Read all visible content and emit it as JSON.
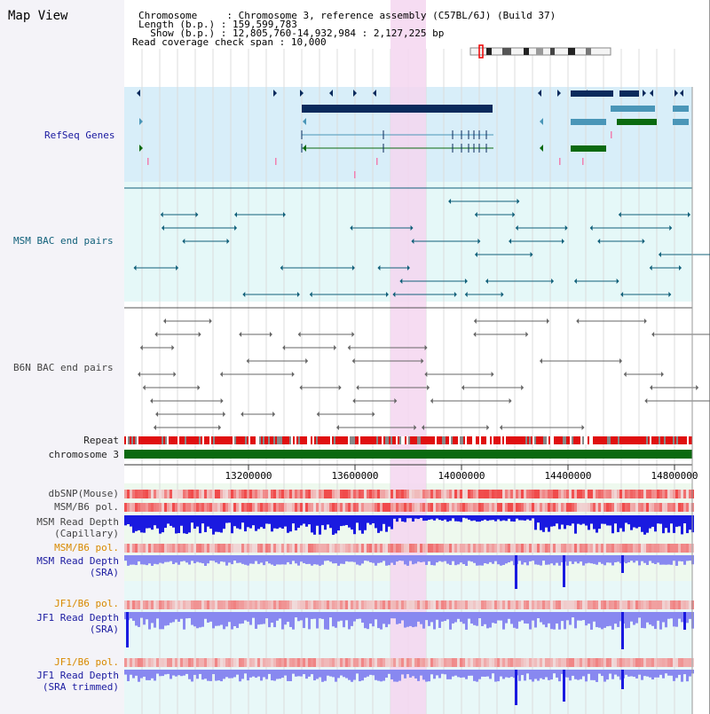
{
  "title": "Map View",
  "header": {
    "chromosome_label": "Chromosome",
    "chromosome_value": "Chromosome 3, reference assembly (C57BL/6J) (Build 37)",
    "length_label": "Length (b.p.)",
    "length_value": "159,599,783",
    "show_label": "Show (b.p.)",
    "show_value": "12,805,760-14,932,984 : 2,127,225 bp",
    "coverage_label": "Read coverage check span",
    "coverage_value": "10,000"
  },
  "tracks": {
    "refseq": "RefSeq Genes",
    "msm_bac": "MSM BAC end pairs",
    "b6n_bac": "B6N BAC end pairs",
    "repeat": "Repeat",
    "chromosome": "chromosome 3",
    "dbsnp": "dbSNP(Mouse)",
    "msm_b6_pol": "MSM/B6 pol.",
    "msm_read_depth_cap_1": "MSM Read Depth",
    "msm_read_depth_cap_2": "(Capillary)",
    "msm_b6_pol_2": "MSM/B6 pol.",
    "msm_read_depth_sra_1": "MSM Read Depth",
    "msm_read_depth_sra_2": "(SRA)",
    "jf1_b6_pol": "JF1/B6 pol.",
    "jf1_read_depth_1": "JF1 Read Depth",
    "jf1_read_depth_2": "(SRA)",
    "jf1_b6_pol_2": "JF1/B6 pol.",
    "jf1_trimmed_1": "JF1 Read Depth",
    "jf1_trimmed_2": "(SRA trimmed)"
  },
  "axis": {
    "ticks": [
      "13200000",
      "13600000",
      "14000000",
      "14400000",
      "14800000"
    ]
  },
  "colors": {
    "refseq_bg": "#d8eef9",
    "msm_bg": "#e5f8f8",
    "highlight": "#f5d6f0",
    "gene_dark": "#0a2a5c",
    "gene_teal": "#4a96b8",
    "gene_green": "#0b6a10",
    "repeat_red": "#e01010",
    "chrom_green": "#0b6a10",
    "depth_blue": "#1a1ae0",
    "depth_light": "#8888f0"
  }
}
